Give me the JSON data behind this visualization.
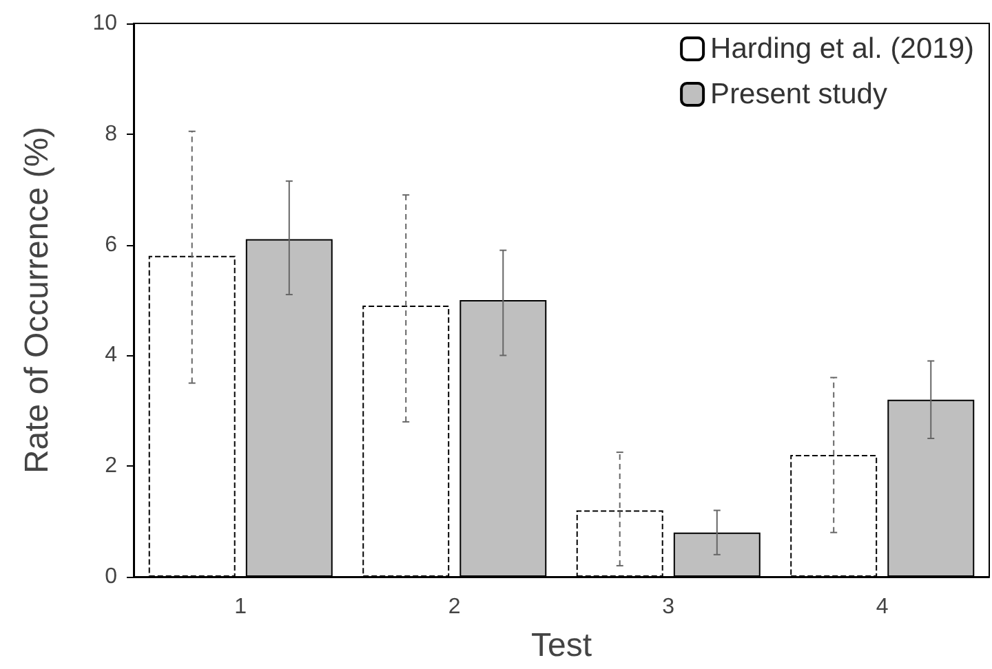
{
  "chart_data": {
    "type": "bar",
    "xlabel": "Test",
    "ylabel": "Rate of Occurrence (%)",
    "categories": [
      "1",
      "2",
      "3",
      "4"
    ],
    "series": [
      {
        "name": "Harding et al. (2019)",
        "color": "#ffffff",
        "line_style": "dashed",
        "values": [
          5.8,
          4.9,
          1.2,
          2.2
        ],
        "errors": [
          [
            3.5,
            8.05
          ],
          [
            2.8,
            6.9
          ],
          [
            0.2,
            2.25
          ],
          [
            0.8,
            3.6
          ]
        ]
      },
      {
        "name": "Present study",
        "color": "#bfbfbf",
        "line_style": "solid",
        "values": [
          6.1,
          5.0,
          0.8,
          3.2
        ],
        "errors": [
          [
            5.1,
            7.15
          ],
          [
            4.0,
            5.9
          ],
          [
            0.4,
            1.2
          ],
          [
            2.5,
            3.9
          ]
        ]
      }
    ],
    "ylim": [
      0,
      10
    ],
    "yticks": [
      0,
      2,
      4,
      6,
      8,
      10
    ],
    "grid": false,
    "legend": "top right"
  }
}
